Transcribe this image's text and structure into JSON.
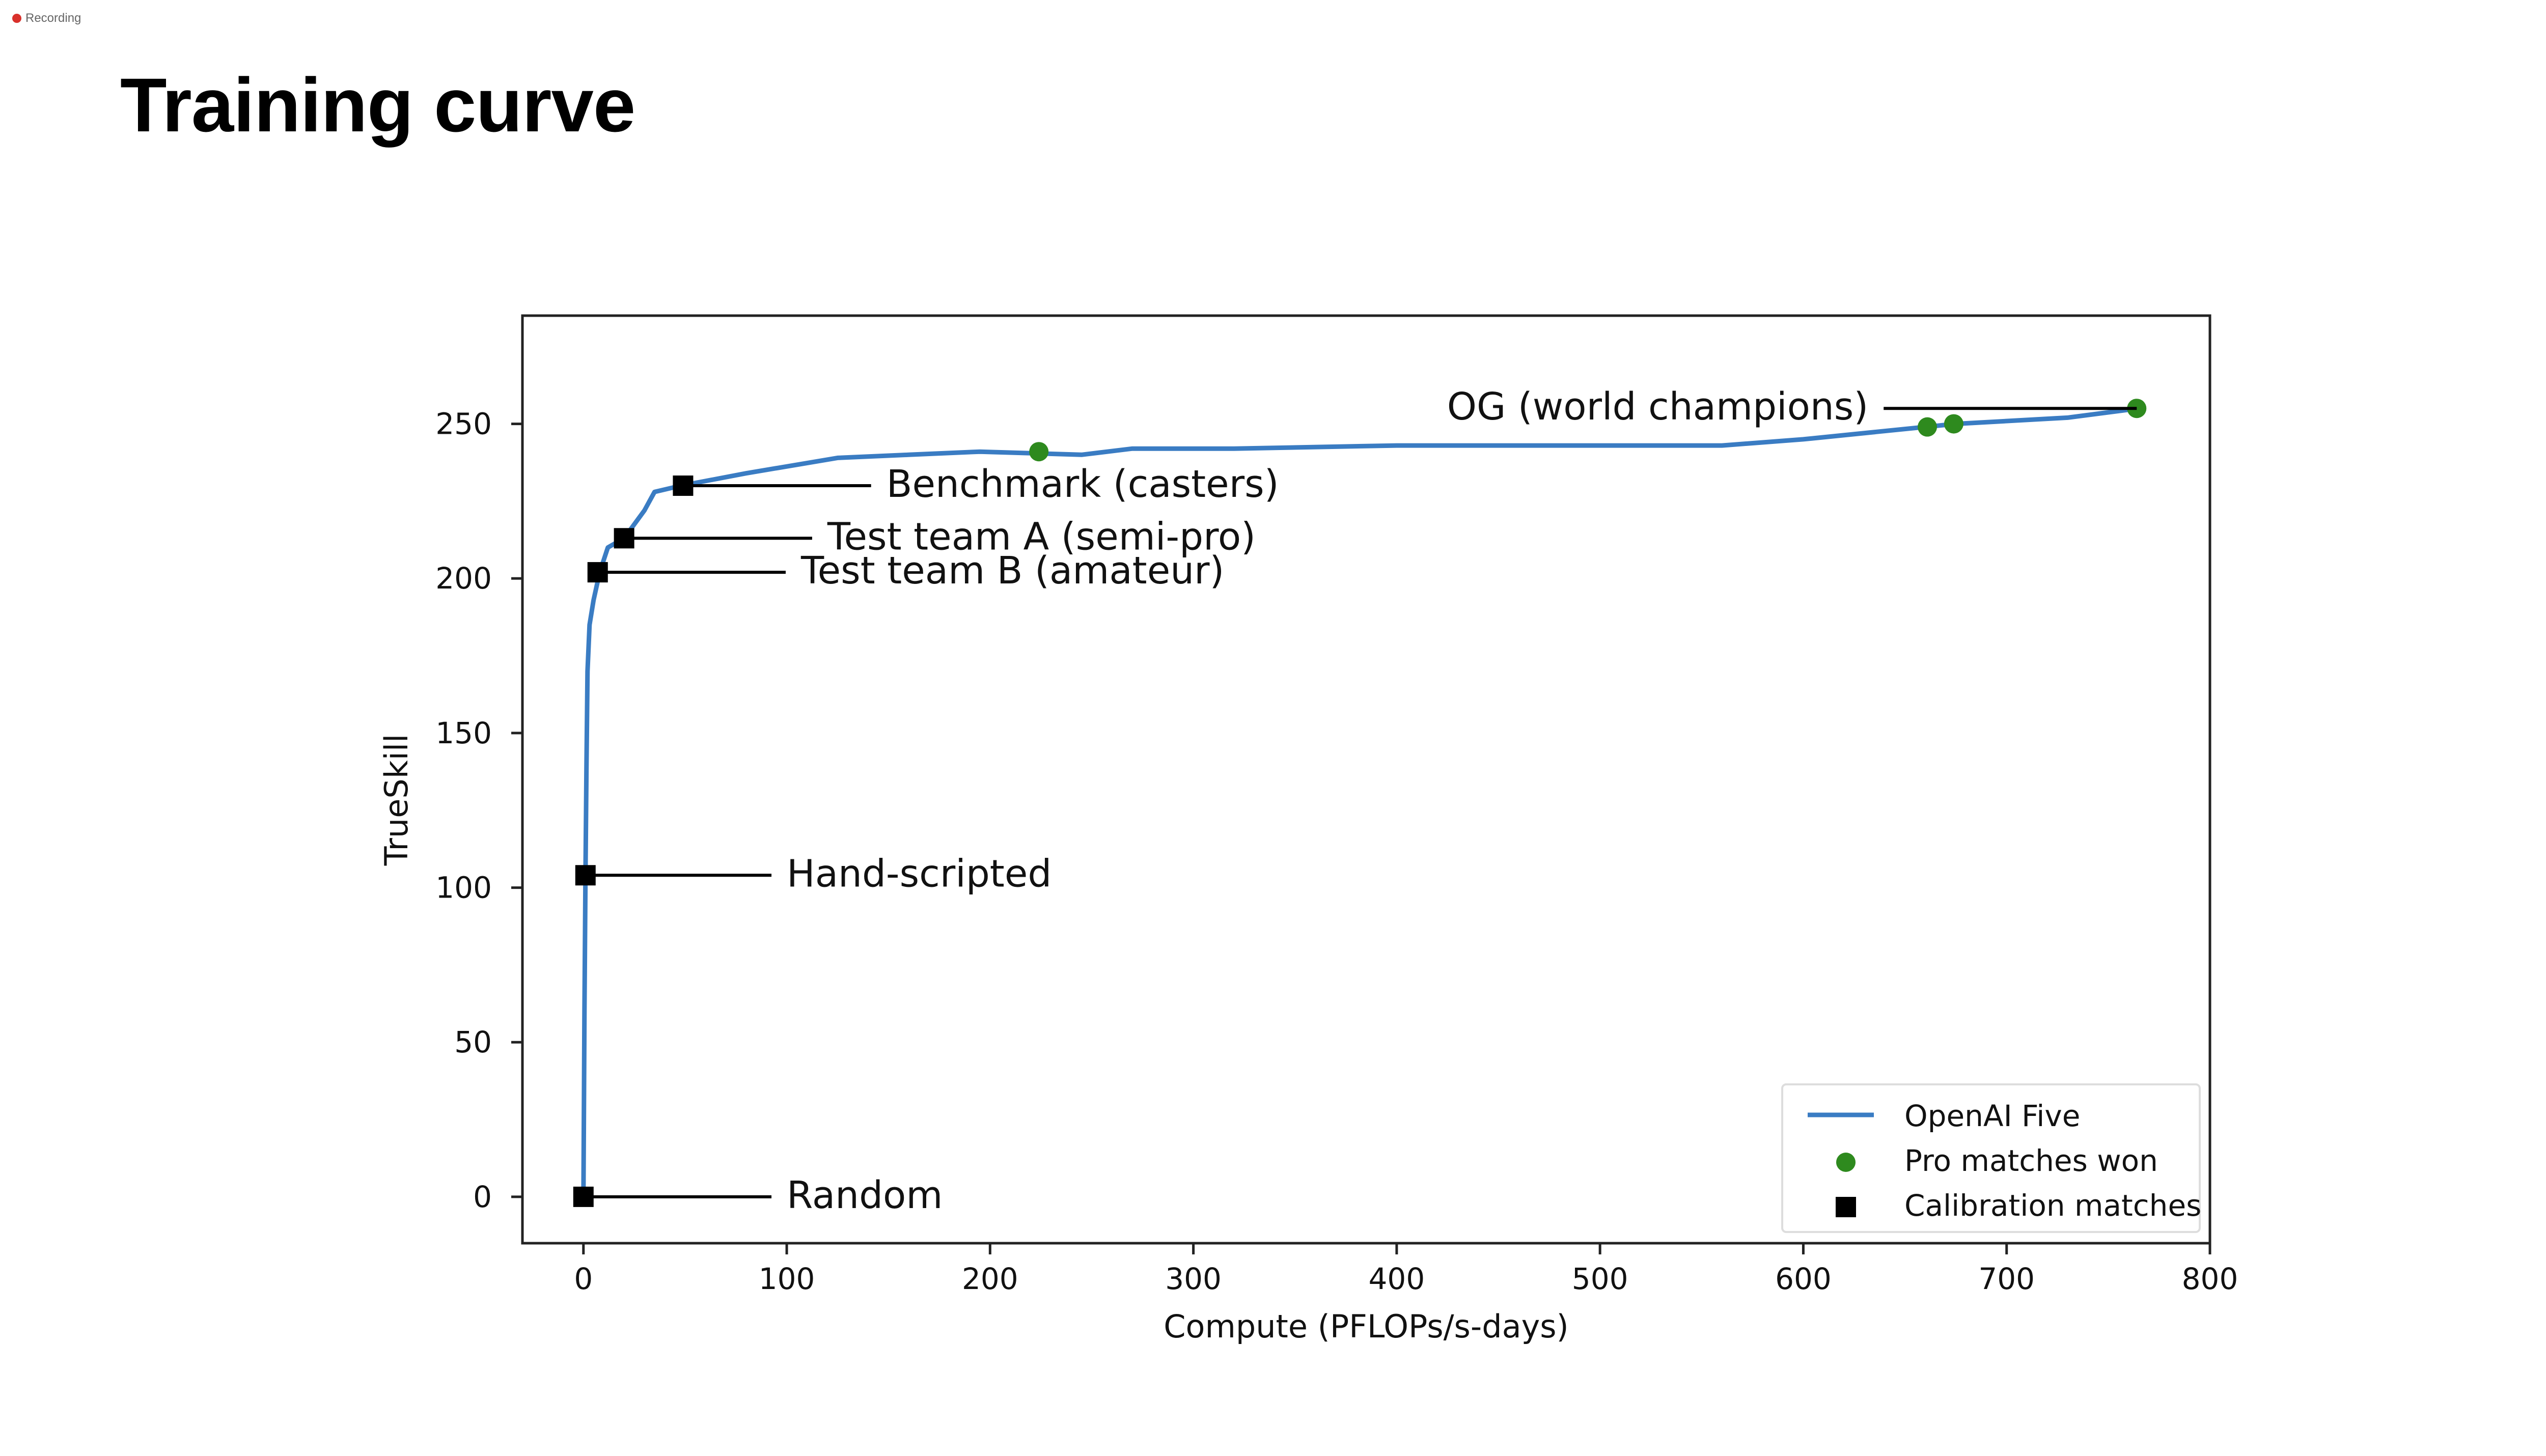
{
  "recording": {
    "label": "Recording",
    "color": "#d9312b"
  },
  "slide": {
    "title": "Training curve"
  },
  "colors": {
    "line": "#3a7cc3",
    "pro": "#2e8a1e",
    "calibration": "#000000"
  },
  "chart_data": {
    "type": "line",
    "xlabel": "Compute (PFLOPs/s-days)",
    "ylabel": "TrueSkill",
    "xlim": [
      -30,
      800
    ],
    "ylim": [
      -15,
      285
    ],
    "xticks": [
      0,
      100,
      200,
      300,
      400,
      500,
      600,
      700,
      800
    ],
    "yticks": [
      0,
      50,
      100,
      150,
      200,
      250
    ],
    "grid": false,
    "legend_position": "lower-right",
    "series": [
      {
        "name": "OpenAI Five",
        "kind": "line",
        "x": [
          0,
          0.5,
          1,
          1.5,
          2,
          3,
          5,
          8,
          12,
          20,
          30,
          35,
          48,
          80,
          125,
          160,
          195,
          245,
          270,
          320,
          400,
          500,
          560,
          600,
          660,
          675,
          730,
          765
        ],
        "y": [
          0,
          60,
          104,
          140,
          170,
          185,
          193,
          202,
          210,
          213,
          222,
          228,
          230,
          234,
          239,
          240,
          241,
          240,
          242,
          242,
          243,
          243,
          243,
          245,
          249,
          250,
          252,
          255
        ]
      },
      {
        "name": "Pro matches won",
        "kind": "scatter",
        "marker": "circle",
        "x": [
          224,
          661,
          674,
          764
        ],
        "y": [
          241,
          249,
          250,
          255
        ]
      },
      {
        "name": "Calibration matches",
        "kind": "scatter",
        "marker": "square",
        "x": [
          0,
          1,
          7,
          20,
          49
        ],
        "y": [
          0,
          104,
          202,
          213,
          230
        ]
      }
    ],
    "annotations": [
      {
        "text": "Random",
        "x": 0,
        "y": 0,
        "text_x": 100
      },
      {
        "text": "Hand-scripted",
        "x": 1,
        "y": 104,
        "text_x": 100
      },
      {
        "text": "Test team B (amateur)",
        "x": 7,
        "y": 202,
        "text_x": 107
      },
      {
        "text": "Test team A (semi-pro)",
        "x": 20,
        "y": 213,
        "text_x": 120
      },
      {
        "text": "Benchmark (casters)",
        "x": 49,
        "y": 230,
        "text_x": 149
      },
      {
        "text": "OG (world champions)",
        "x": 764,
        "y": 255,
        "text_x": 632,
        "align": "end"
      }
    ]
  }
}
